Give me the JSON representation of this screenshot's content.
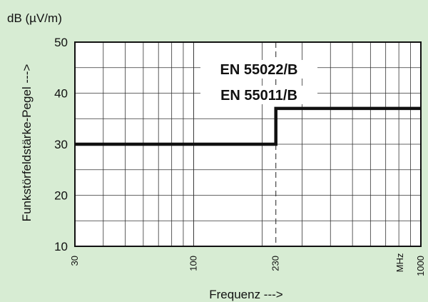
{
  "chart_data": {
    "type": "line",
    "y_unit_label": "dB (µV/m)",
    "ylabel": "Funkstörfeldstärke-Pegel  --->",
    "xlabel": "Frequenz  --->",
    "x_unit_label": "MHz",
    "x_scale": "log",
    "xlim": [
      30,
      1000
    ],
    "ylim": [
      10,
      50
    ],
    "y_ticks": [
      10,
      20,
      30,
      40,
      50
    ],
    "x_ticks": [
      30,
      100,
      230,
      1000
    ],
    "grid": true,
    "annotations": [
      "EN 55022/B",
      "EN 55011/B"
    ],
    "series": [
      {
        "x": [
          30,
          230,
          230,
          1000
        ],
        "y": [
          30,
          30,
          37,
          37
        ]
      }
    ],
    "reference_line_x": 230,
    "colors": {
      "background": "#d7ecd3",
      "plot_area": "#ffffff",
      "line": "#111111",
      "grid": "#333333"
    }
  }
}
